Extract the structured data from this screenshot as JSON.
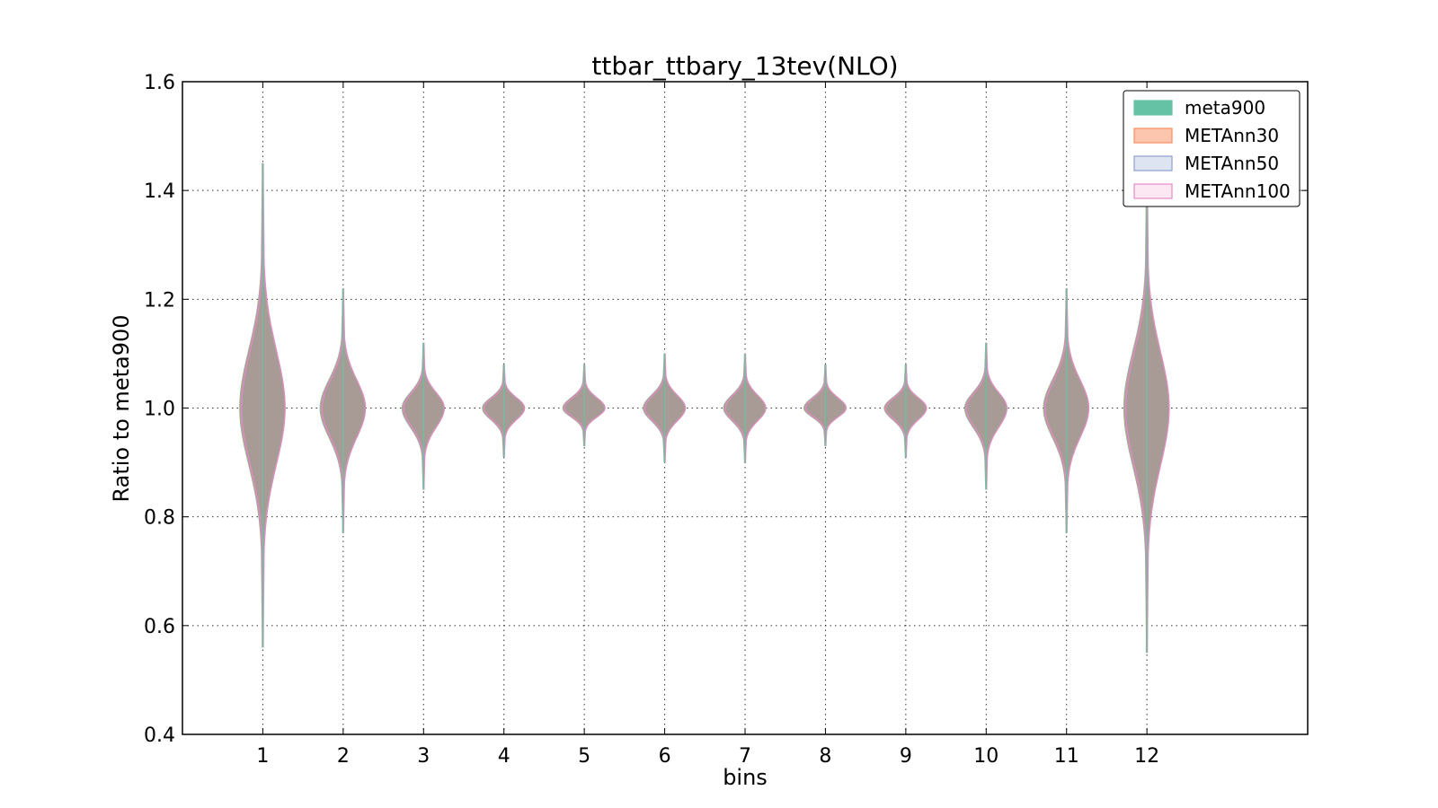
{
  "chart_data": {
    "type": "violin",
    "title": "ttbar_ttbary_13tev(NLO)",
    "xlabel": "bins",
    "ylabel": "Ratio to meta900",
    "ylim": [
      0.4,
      1.6
    ],
    "xlim": [
      0,
      14
    ],
    "yticks": [
      "0.4",
      "0.6",
      "0.8",
      "1.0",
      "1.2",
      "1.4",
      "1.6"
    ],
    "categories": [
      "1",
      "2",
      "3",
      "4",
      "5",
      "6",
      "7",
      "8",
      "9",
      "10",
      "11",
      "12"
    ],
    "grid": true,
    "legend_position": "top-right",
    "series": [
      {
        "name": "meta900",
        "color": "#66c2a5"
      },
      {
        "name": "METAnn30",
        "color": "#fc8d62"
      },
      {
        "name": "METAnn50",
        "color": "#8da0cb"
      },
      {
        "name": "METAnn100",
        "color": "#e78ac3"
      }
    ],
    "violins": [
      {
        "bin": "1",
        "center": 1.0,
        "min": 0.56,
        "max": 1.45,
        "halfwidth": 0.28
      },
      {
        "bin": "2",
        "center": 1.0,
        "min": 0.77,
        "max": 1.22,
        "halfwidth": 0.28
      },
      {
        "bin": "3",
        "center": 1.0,
        "min": 0.85,
        "max": 1.12,
        "halfwidth": 0.26
      },
      {
        "bin": "4",
        "center": 1.0,
        "min": 0.91,
        "max": 1.08,
        "halfwidth": 0.26
      },
      {
        "bin": "5",
        "center": 1.0,
        "min": 0.93,
        "max": 1.08,
        "halfwidth": 0.26
      },
      {
        "bin": "6",
        "center": 1.0,
        "min": 0.9,
        "max": 1.1,
        "halfwidth": 0.26
      },
      {
        "bin": "7",
        "center": 1.0,
        "min": 0.9,
        "max": 1.1,
        "halfwidth": 0.26
      },
      {
        "bin": "8",
        "center": 1.0,
        "min": 0.93,
        "max": 1.08,
        "halfwidth": 0.26
      },
      {
        "bin": "9",
        "center": 1.0,
        "min": 0.91,
        "max": 1.08,
        "halfwidth": 0.26
      },
      {
        "bin": "10",
        "center": 1.0,
        "min": 0.85,
        "max": 1.12,
        "halfwidth": 0.26
      },
      {
        "bin": "11",
        "center": 1.0,
        "min": 0.77,
        "max": 1.22,
        "halfwidth": 0.28
      },
      {
        "bin": "12",
        "center": 1.0,
        "min": 0.55,
        "max": 1.44,
        "halfwidth": 0.28
      }
    ],
    "violin_fill": "#a89a94"
  }
}
